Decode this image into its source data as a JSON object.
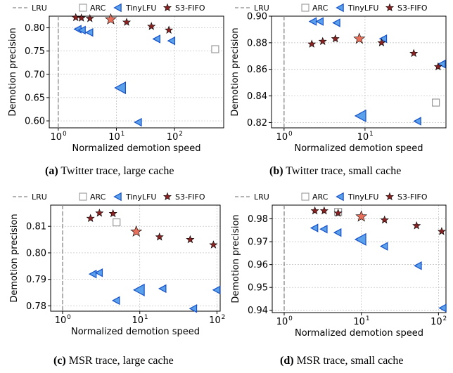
{
  "legend": {
    "lru": "LRU",
    "arc": "ARC",
    "tinylfu": "TinyLFU",
    "s3fifo": "S3-FIFO"
  },
  "colors": {
    "lru": "#888888",
    "arc": "#999999",
    "tinylfu_fill": "#5aa0ea",
    "tinylfu_edge": "#1550c8",
    "s3fifo_small": "#8b2222",
    "s3fifo_large": "#e8705a",
    "grid": "#bbbbbb"
  },
  "chart_data": [
    {
      "id": "a",
      "type": "scatter",
      "caption_tag": "(a)",
      "caption_text": "Twitter trace, large cache",
      "xlabel": "Normalized demotion speed",
      "ylabel": "Demotion precision",
      "x_scale": "log",
      "xlim": [
        0.7,
        700
      ],
      "ylim": [
        0.585,
        0.825
      ],
      "xticks": [
        {
          "v": 1,
          "base": "10",
          "exp": "0"
        },
        {
          "v": 10,
          "base": "10",
          "exp": "1"
        },
        {
          "v": 100,
          "base": "10",
          "exp": "2"
        }
      ],
      "yticks": [
        {
          "v": 0.6,
          "label": "0.60"
        },
        {
          "v": 0.65,
          "label": "0.65"
        },
        {
          "v": 0.7,
          "label": "0.70"
        },
        {
          "v": 0.75,
          "label": "0.75"
        },
        {
          "v": 0.8,
          "label": "0.80"
        }
      ],
      "lru_x": 1,
      "grid": true,
      "arc": [
        {
          "x": 500,
          "y": 0.754
        }
      ],
      "tinylfu": [
        {
          "x": 2.2,
          "y": 0.797
        },
        {
          "x": 2.6,
          "y": 0.795
        },
        {
          "x": 3.5,
          "y": 0.79
        },
        {
          "x": 12,
          "y": 0.671,
          "large": true
        },
        {
          "x": 24,
          "y": 0.597
        },
        {
          "x": 50,
          "y": 0.776
        },
        {
          "x": 90,
          "y": 0.772
        }
      ],
      "s3fifo": [
        {
          "x": 2.0,
          "y": 0.822
        },
        {
          "x": 2.5,
          "y": 0.821
        },
        {
          "x": 3.5,
          "y": 0.82
        },
        {
          "x": 8,
          "y": 0.818,
          "large": true
        },
        {
          "x": 15,
          "y": 0.812
        },
        {
          "x": 40,
          "y": 0.803
        },
        {
          "x": 80,
          "y": 0.795
        }
      ]
    },
    {
      "id": "b",
      "type": "scatter",
      "caption_tag": "(b)",
      "caption_text": "Twitter trace, small cache",
      "xlabel": "Normalized demotion speed",
      "ylabel": "Demotion precision",
      "x_scale": "log",
      "xlim": [
        0.7,
        100
      ],
      "ylim": [
        0.816,
        0.9
      ],
      "xticks": [
        {
          "v": 1,
          "base": "10",
          "exp": "0"
        },
        {
          "v": 10,
          "base": "10",
          "exp": "1"
        }
      ],
      "yticks": [
        {
          "v": 0.82,
          "label": "0.82"
        },
        {
          "v": 0.84,
          "label": "0.84"
        },
        {
          "v": 0.86,
          "label": "0.86"
        },
        {
          "v": 0.88,
          "label": "0.88"
        },
        {
          "v": 0.9,
          "label": "0.90"
        }
      ],
      "lru_x": 1,
      "grid": true,
      "arc": [
        {
          "x": 75,
          "y": 0.835
        }
      ],
      "tinylfu": [
        {
          "x": 2.3,
          "y": 0.896
        },
        {
          "x": 2.8,
          "y": 0.896
        },
        {
          "x": 4.5,
          "y": 0.895
        },
        {
          "x": 9,
          "y": 0.825,
          "large": true
        },
        {
          "x": 17,
          "y": 0.883
        },
        {
          "x": 45,
          "y": 0.821
        },
        {
          "x": 90,
          "y": 0.864
        }
      ],
      "s3fifo": [
        {
          "x": 2.2,
          "y": 0.879
        },
        {
          "x": 3.0,
          "y": 0.881
        },
        {
          "x": 4.3,
          "y": 0.883
        },
        {
          "x": 8.5,
          "y": 0.883,
          "large": true
        },
        {
          "x": 16,
          "y": 0.88
        },
        {
          "x": 40,
          "y": 0.872
        },
        {
          "x": 80,
          "y": 0.862
        }
      ]
    },
    {
      "id": "c",
      "type": "scatter",
      "caption_tag": "(c)",
      "caption_text": "MSR trace, large cache",
      "xlabel": "Normalized demotion speed",
      "ylabel": "Demotion precision",
      "x_scale": "log",
      "xlim": [
        0.7,
        110
      ],
      "ylim": [
        0.778,
        0.818
      ],
      "xticks": [
        {
          "v": 1,
          "base": "10",
          "exp": "0"
        },
        {
          "v": 10,
          "base": "10",
          "exp": "1"
        },
        {
          "v": 100,
          "base": "10",
          "exp": "2"
        }
      ],
      "yticks": [
        {
          "v": 0.78,
          "label": "0.78"
        },
        {
          "v": 0.79,
          "label": "0.79"
        },
        {
          "v": 0.8,
          "label": "0.80"
        },
        {
          "v": 0.81,
          "label": "0.81"
        }
      ],
      "lru_x": 1,
      "grid": true,
      "arc": [
        {
          "x": 5,
          "y": 0.8115
        }
      ],
      "tinylfu": [
        {
          "x": 2.5,
          "y": 0.792
        },
        {
          "x": 3.0,
          "y": 0.7925
        },
        {
          "x": 5.0,
          "y": 0.782
        },
        {
          "x": 10,
          "y": 0.786,
          "large": true
        },
        {
          "x": 20,
          "y": 0.7865
        },
        {
          "x": 50,
          "y": 0.779
        },
        {
          "x": 100,
          "y": 0.786
        }
      ],
      "s3fifo": [
        {
          "x": 2.3,
          "y": 0.813
        },
        {
          "x": 3.0,
          "y": 0.815
        },
        {
          "x": 4.5,
          "y": 0.8148
        },
        {
          "x": 9,
          "y": 0.808,
          "large": true
        },
        {
          "x": 18,
          "y": 0.806
        },
        {
          "x": 45,
          "y": 0.805
        },
        {
          "x": 90,
          "y": 0.803
        }
      ]
    },
    {
      "id": "d",
      "type": "scatter",
      "caption_tag": "(d)",
      "caption_text": "MSR trace, small cache",
      "xlabel": "Normalized demotion speed",
      "ylabel": "Demotion precision",
      "x_scale": "log",
      "xlim": [
        0.7,
        125
      ],
      "ylim": [
        0.939,
        0.986
      ],
      "xticks": [
        {
          "v": 1,
          "base": "10",
          "exp": "0"
        },
        {
          "v": 10,
          "base": "10",
          "exp": "1"
        },
        {
          "v": 100,
          "base": "10",
          "exp": "2"
        }
      ],
      "yticks": [
        {
          "v": 0.94,
          "label": "0.94"
        },
        {
          "v": 0.95,
          "label": "0.95"
        },
        {
          "v": 0.96,
          "label": "0.96"
        },
        {
          "v": 0.97,
          "label": "0.97"
        },
        {
          "v": 0.98,
          "label": "0.98"
        }
      ],
      "lru_x": 1,
      "grid": true,
      "arc": [
        {
          "x": 5,
          "y": 0.983
        }
      ],
      "tinylfu": [
        {
          "x": 2.5,
          "y": 0.976
        },
        {
          "x": 3.3,
          "y": 0.9755
        },
        {
          "x": 5.0,
          "y": 0.974
        },
        {
          "x": 10,
          "y": 0.971,
          "large": true
        },
        {
          "x": 20,
          "y": 0.968
        },
        {
          "x": 55,
          "y": 0.9595
        },
        {
          "x": 115,
          "y": 0.941
        }
      ],
      "s3fifo": [
        {
          "x": 2.5,
          "y": 0.9835
        },
        {
          "x": 3.3,
          "y": 0.9835
        },
        {
          "x": 5.0,
          "y": 0.9825
        },
        {
          "x": 10,
          "y": 0.981,
          "large": true
        },
        {
          "x": 20,
          "y": 0.9795
        },
        {
          "x": 52,
          "y": 0.977
        },
        {
          "x": 110,
          "y": 0.9745
        }
      ]
    }
  ]
}
